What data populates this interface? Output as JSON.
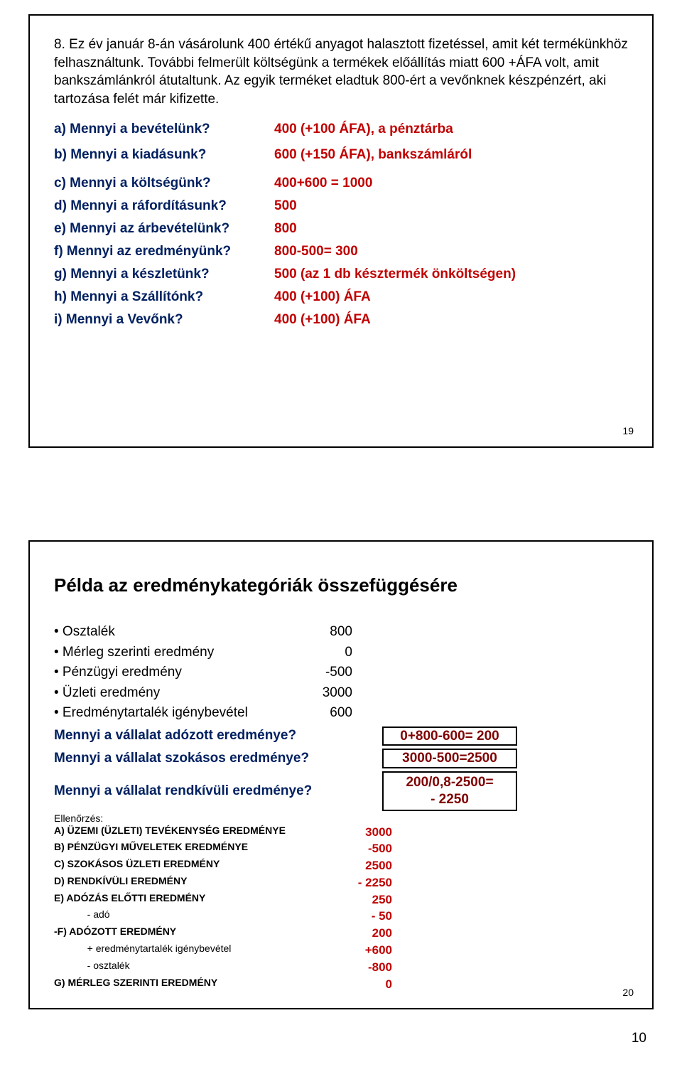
{
  "slide1": {
    "intro": "8. Ez év január 8-án vásárolunk 400 értékű anyagot halasztott fizetéssel, amit két termékünkhöz felhasználtunk. További felmerült költségünk a termékek előállítás miatt 600 +ÁFA volt, amit bankszámlánkról átutaltunk. Az egyik terméket eladtuk  800-ért a vevőnknek készpénzért, aki tartozása felét már kifizette.",
    "qa": [
      {
        "q": "a) Mennyi a bevételünk?",
        "a": "400 (+100 ÁFA), a pénztárba"
      },
      {
        "q": "b) Mennyi a kiadásunk?",
        "a": "600 (+150 ÁFA), bankszámláról"
      },
      {
        "q": "c) Mennyi a költségünk?",
        "a": "400+600 = 1000"
      },
      {
        "q": "d) Mennyi a ráfordításunk?",
        "a": "500"
      },
      {
        "q": "e) Mennyi az árbevételünk?",
        "a": "800"
      },
      {
        "q": "f) Mennyi az eredményünk?",
        "a": "800-500= 300"
      },
      {
        "q": "g) Mennyi a készletünk?",
        "a": "500 (az 1 db késztermék önköltségen)"
      },
      {
        "q": "h) Mennyi a Szállítónk?",
        "a": "400 (+100) ÁFA"
      },
      {
        "q": "i) Mennyi a Vevőnk?",
        "a": "400 (+100) ÁFA"
      }
    ],
    "num": "19"
  },
  "slide2": {
    "title": "Példa az eredménykategóriák összefüggésére",
    "bullets": [
      {
        "label": "Osztalék",
        "value": "800"
      },
      {
        "label": "Mérleg szerinti eredmény",
        "value": "0"
      },
      {
        "label": "Pénzügyi eredmény",
        "value": "-500"
      },
      {
        "label": "Üzleti eredmény",
        "value": "3000"
      },
      {
        "label": "Eredménytartalék igénybevétel",
        "value": "600"
      }
    ],
    "questions": [
      {
        "q": "Mennyi a vállalat adózott eredménye?",
        "a": "0+800-600= 200"
      },
      {
        "q": "Mennyi a vállalat szokásos eredménye?",
        "a": "3000-500=2500"
      },
      {
        "q": "Mennyi a vállalat rendkívüli eredménye?",
        "a": "200/0,8-2500=\n- 2250"
      }
    ],
    "check_head": "Ellenőrzés:",
    "check": [
      {
        "label": "A) ÜZEMI (ÜZLETI) TEVÉKENYSÉG EREDMÉNYE",
        "value": "3000"
      },
      {
        "label": "B) PÉNZÜGYI MŰVELETEK EREDMÉNYE",
        "value": "-500"
      },
      {
        "label": "C) SZOKÁSOS ÜZLETI EREDMÉNY",
        "value": "2500"
      },
      {
        "label": "D) RENDKÍVÜLI EREDMÉNY",
        "value": "- 2250"
      },
      {
        "label": "E) ADÓZÁS ELŐTTI EREDMÉNY",
        "value": "250"
      },
      {
        "label": "            - adó",
        "value": "- 50"
      },
      {
        "label": "-F) ADÓZOTT EREDMÉNY",
        "value": "200"
      },
      {
        "label": "            + eredménytartalék igénybevétel",
        "value": "+600"
      },
      {
        "label": "            - osztalék",
        "value": "-800"
      },
      {
        "label": "G) MÉRLEG SZERINTI EREDMÉNY",
        "value": "0"
      }
    ],
    "num": "20"
  },
  "page": "10"
}
